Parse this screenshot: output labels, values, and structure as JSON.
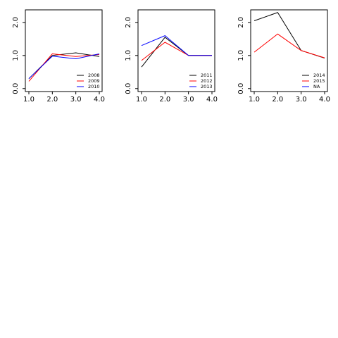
{
  "chart_data": [
    {
      "type": "line",
      "x": [
        1,
        2,
        3,
        4
      ],
      "series": [
        {
          "name": "2008",
          "color": "#000000",
          "values": [
            0.3,
            1.0,
            1.08,
            0.97
          ]
        },
        {
          "name": "2009",
          "color": "#ff0000",
          "values": [
            0.22,
            1.05,
            0.97,
            1.03
          ]
        },
        {
          "name": "2010",
          "color": "#0000ff",
          "values": [
            0.3,
            0.98,
            0.9,
            1.05
          ]
        }
      ],
      "xlim": [
        0.85,
        4.12
      ],
      "ylim": [
        -0.09,
        2.38
      ],
      "xticks": [
        {
          "value": 1,
          "label": "1.0"
        },
        {
          "value": 2,
          "label": "2.0"
        },
        {
          "value": 3,
          "label": "3.0"
        },
        {
          "value": 4,
          "label": "4.0"
        }
      ],
      "yticks": [
        {
          "value": 0,
          "label": "0.0"
        },
        {
          "value": 1,
          "label": "1.0"
        },
        {
          "value": 2,
          "label": "2.0"
        }
      ],
      "legend": "bottom right"
    },
    {
      "type": "line",
      "x": [
        1,
        2,
        3,
        4
      ],
      "series": [
        {
          "name": "2011",
          "color": "#000000",
          "values": [
            0.65,
            1.55,
            1.0,
            1.0
          ]
        },
        {
          "name": "2012",
          "color": "#ff0000",
          "values": [
            0.85,
            1.4,
            1.0,
            1.0
          ]
        },
        {
          "name": "2013",
          "color": "#0000ff",
          "values": [
            1.3,
            1.6,
            1.0,
            1.0
          ]
        }
      ],
      "xlim": [
        0.85,
        4.12
      ],
      "ylim": [
        -0.09,
        2.38
      ],
      "xticks": [
        {
          "value": 1,
          "label": "1.0"
        },
        {
          "value": 2,
          "label": "2.0"
        },
        {
          "value": 3,
          "label": "3.0"
        },
        {
          "value": 4,
          "label": "4.0"
        }
      ],
      "yticks": [
        {
          "value": 0,
          "label": "0.0"
        },
        {
          "value": 1,
          "label": "1.0"
        },
        {
          "value": 2,
          "label": "2.0"
        }
      ],
      "legend": "bottom right"
    },
    {
      "type": "line",
      "x": [
        1,
        2,
        3,
        4
      ],
      "series": [
        {
          "name": "2014",
          "color": "#000000",
          "values": [
            2.05,
            2.3,
            1.15,
            0.92
          ]
        },
        {
          "name": "2015",
          "color": "#ff0000",
          "values": [
            1.1,
            1.65,
            1.15,
            0.93
          ]
        },
        {
          "name": "NA",
          "color": "#0000ff",
          "values": [
            null,
            null,
            null,
            null
          ]
        }
      ],
      "xlim": [
        0.85,
        4.12
      ],
      "ylim": [
        -0.09,
        2.38
      ],
      "xticks": [
        {
          "value": 1,
          "label": "1.0"
        },
        {
          "value": 2,
          "label": "2.0"
        },
        {
          "value": 3,
          "label": "3.0"
        },
        {
          "value": 4,
          "label": "4.0"
        }
      ],
      "yticks": [
        {
          "value": 0,
          "label": "0.0"
        },
        {
          "value": 1,
          "label": "1.0"
        },
        {
          "value": 2,
          "label": "2.0"
        }
      ],
      "legend": "bottom right"
    }
  ]
}
